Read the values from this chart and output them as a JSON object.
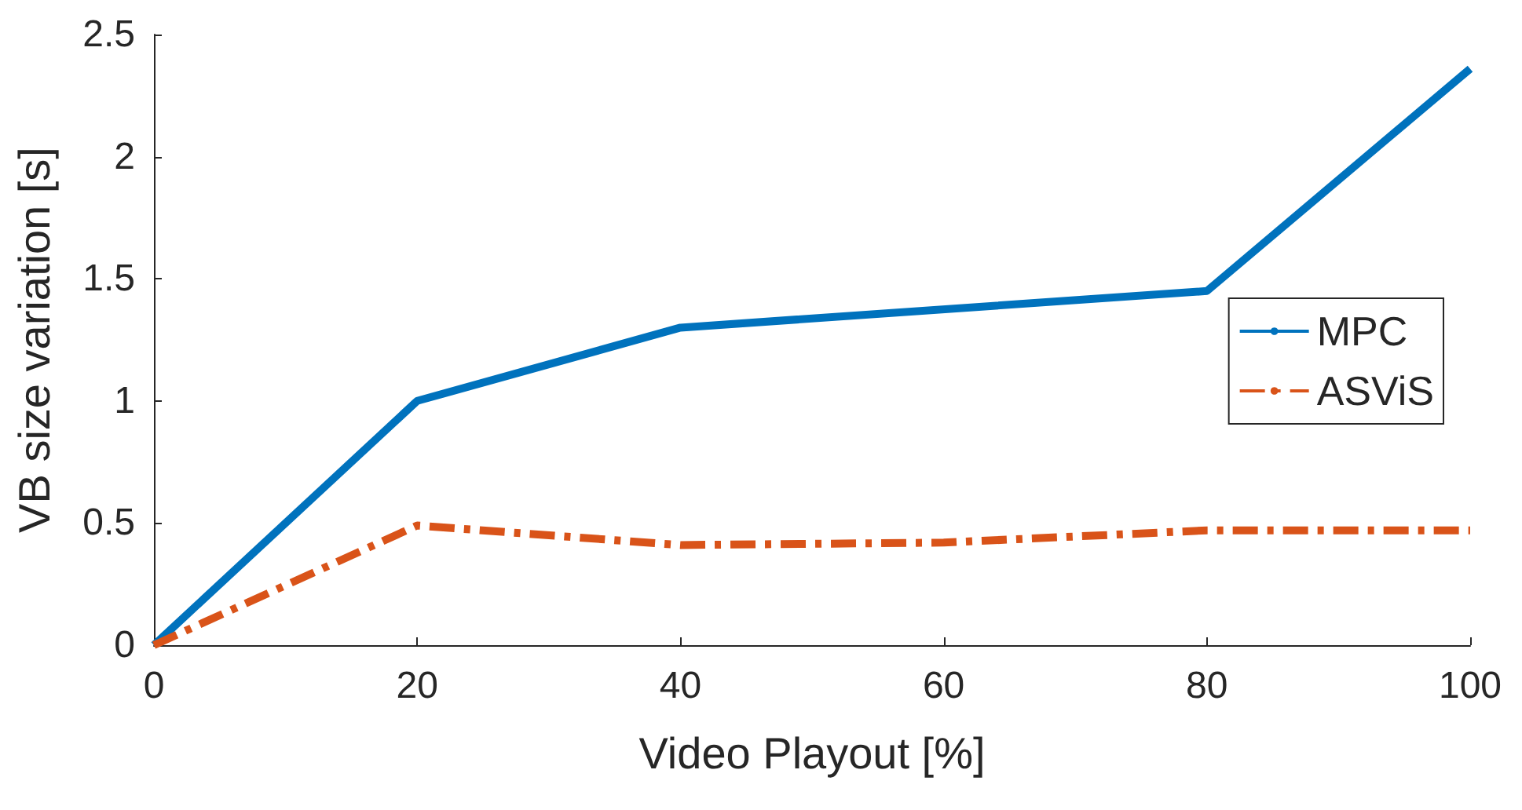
{
  "chart_data": {
    "type": "line",
    "xlabel": "Video Playout [%]",
    "ylabel": "VB size variation [s]",
    "x": [
      0,
      20,
      40,
      80,
      100
    ],
    "series": [
      {
        "name": "MPC",
        "color": "#0072bd",
        "values": [
          0,
          1,
          1.3,
          1.45,
          2.36
        ],
        "line_style": "solid"
      },
      {
        "name": "ASViS",
        "color": "#d95319",
        "x": [
          0,
          20,
          40,
          60,
          80,
          100
        ],
        "values": [
          0,
          0.49,
          0.41,
          0.42,
          0.47,
          0.47
        ],
        "line_style": "dashed"
      }
    ],
    "xlim": [
      0,
      100
    ],
    "xticks": [
      0,
      20,
      40,
      60,
      80,
      100
    ],
    "ylim": [
      0,
      2.5
    ],
    "yticks": [
      0,
      0.5,
      1,
      1.5,
      2,
      2.5
    ],
    "grid": false,
    "legend": "right",
    "marker": "none"
  }
}
